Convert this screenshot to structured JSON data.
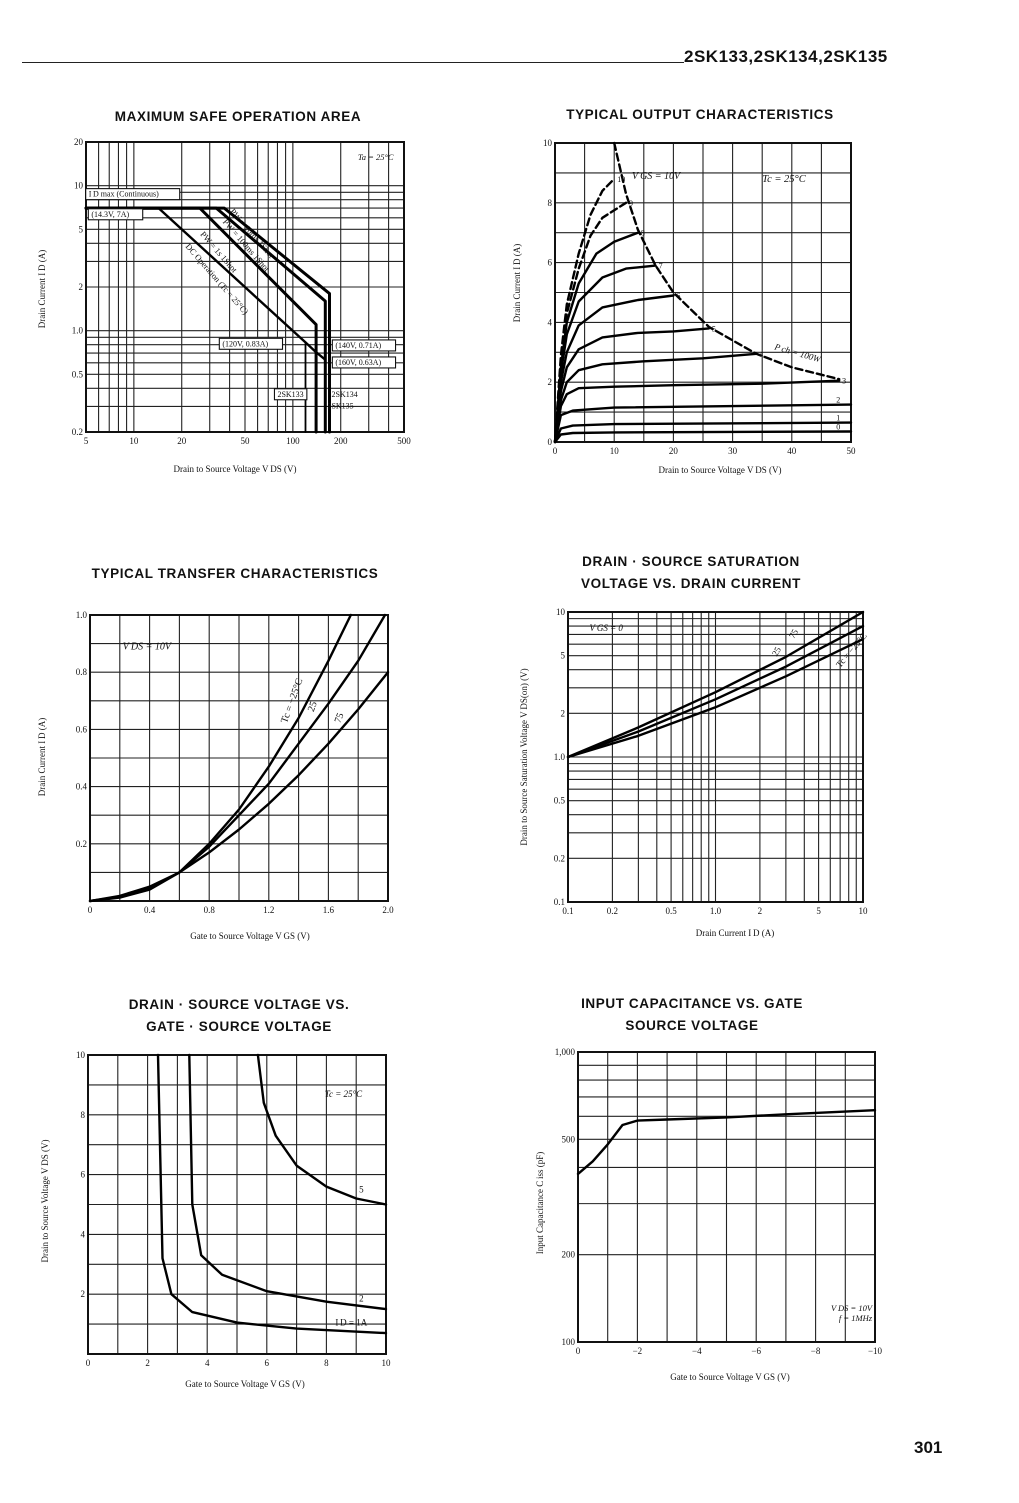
{
  "header": {
    "part_numbers": "2SK133,2SK134,2SK135"
  },
  "page_number": "301",
  "chart_data": [
    {
      "id": "soa",
      "type": "line",
      "title": "MAXIMUM SAFE OPERATION AREA",
      "xlabel": "Drain to Source Voltage  V DS  (V)",
      "ylabel": "Drain Current  I D  (A)",
      "xscale": "log",
      "yscale": "log",
      "xlim": [
        5,
        500
      ],
      "ylim": [
        0.2,
        20
      ],
      "xticks": [
        5,
        10,
        20,
        50,
        100,
        200,
        500
      ],
      "xtick_labels": [
        "5",
        "10",
        "20",
        "50",
        "100",
        "200",
        "500"
      ],
      "yticks": [
        0.2,
        0.5,
        1.0,
        2,
        5,
        10,
        20
      ],
      "ytick_labels": [
        "0.2",
        "0.5",
        "1.0",
        "2",
        "5",
        "10",
        "20"
      ],
      "condition": "Ta = 25°C",
      "series": [
        {
          "name": "PW = 10ms 1Shot",
          "x": [
            5,
            37,
            170,
            170
          ],
          "y": [
            7,
            7,
            1.8,
            0.2
          ]
        },
        {
          "name": "PW = 100ms 1Shot",
          "x": [
            5,
            33,
            160,
            160
          ],
          "y": [
            7,
            7,
            1.6,
            0.2
          ]
        },
        {
          "name": "PW = 1s 1Shot",
          "x": [
            5,
            26,
            140,
            140
          ],
          "y": [
            7,
            7,
            1.1,
            0.2
          ]
        },
        {
          "name": "DC Operation (Tc = 25°C)",
          "x": [
            5,
            14.3,
            120,
            140,
            160
          ],
          "y": [
            7,
            7,
            0.83,
            0.71,
            0.63
          ]
        },
        {
          "name": "2SK133",
          "x": [
            120,
            120
          ],
          "y": [
            0.83,
            0.2
          ]
        },
        {
          "name": "2SK134",
          "x": [
            140,
            140
          ],
          "y": [
            0.71,
            0.2
          ]
        },
        {
          "name": "2SK135",
          "x": [
            160,
            160
          ],
          "y": [
            0.63,
            0.2
          ]
        }
      ],
      "annotations": [
        "I D max (Continuous)",
        "(14.3V, 7A)",
        "(120V, 0.83A)",
        "(140V, 0.71A)",
        "(160V, 0.63A)",
        "2SK133",
        "2SK134",
        "2SK135",
        "PW = 10ms 1Shot",
        "PW = 100ms 1Shot",
        "PW = 1s 1Shot",
        "DC Operation (Tc = 25°C)"
      ]
    },
    {
      "id": "output",
      "type": "line",
      "title": "TYPICAL OUTPUT CHARACTERISTICS",
      "xlabel": "Drain to Source Voltage  V DS  (V)",
      "ylabel": "Drain Current  I D  (A)",
      "xlim": [
        0,
        50
      ],
      "ylim": [
        0,
        10
      ],
      "xticks": [
        0,
        10,
        20,
        30,
        40,
        50
      ],
      "yticks": [
        0,
        2,
        4,
        6,
        8,
        10
      ],
      "condition": "Tc = 25°C",
      "annotations": [
        "V GS = 10V",
        "P ch = 100W"
      ],
      "series": [
        {
          "name": "0",
          "x": [
            0,
            1,
            3,
            10,
            50
          ],
          "y": [
            0,
            0.25,
            0.3,
            0.32,
            0.35
          ]
        },
        {
          "name": "1",
          "x": [
            0,
            1,
            3,
            10,
            50
          ],
          "y": [
            0,
            0.45,
            0.55,
            0.6,
            0.65
          ]
        },
        {
          "name": "2",
          "x": [
            0,
            1,
            3,
            10,
            50
          ],
          "y": [
            0,
            0.9,
            1.05,
            1.15,
            1.25
          ]
        },
        {
          "name": "3",
          "x": [
            0,
            1,
            2,
            4,
            10,
            20,
            35,
            48
          ],
          "y": [
            0,
            1.2,
            1.6,
            1.8,
            1.85,
            1.9,
            1.95,
            2.05
          ]
        },
        {
          "name": "4",
          "x": [
            0,
            1,
            2,
            4,
            8,
            15,
            25,
            34
          ],
          "y": [
            0,
            1.4,
            2.0,
            2.4,
            2.6,
            2.7,
            2.8,
            2.95
          ]
        },
        {
          "name": "5",
          "x": [
            0,
            1,
            2,
            4,
            8,
            14,
            20,
            26
          ],
          "y": [
            0,
            1.7,
            2.5,
            3.1,
            3.5,
            3.65,
            3.7,
            3.8
          ]
        },
        {
          "name": "6",
          "x": [
            0,
            1,
            2,
            4,
            8,
            14,
            20
          ],
          "y": [
            0,
            2.0,
            3.0,
            3.9,
            4.5,
            4.75,
            4.9
          ]
        },
        {
          "name": "7",
          "x": [
            0,
            1,
            2,
            4,
            8,
            12,
            17
          ],
          "y": [
            0,
            2.3,
            3.6,
            4.7,
            5.5,
            5.8,
            5.9
          ]
        },
        {
          "name": "8",
          "x": [
            0,
            1,
            2,
            4,
            7,
            10,
            14
          ],
          "y": [
            0,
            2.5,
            4.0,
            5.3,
            6.3,
            6.7,
            7.0
          ]
        },
        {
          "name": "9",
          "x": [
            0,
            1,
            2,
            4,
            6,
            8,
            12
          ],
          "y": [
            0,
            2.7,
            4.3,
            5.8,
            6.9,
            7.5,
            8.0
          ],
          "dashed": true
        },
        {
          "name": "10",
          "x": [
            0,
            1,
            2,
            4,
            6,
            8,
            10
          ],
          "y": [
            0,
            2.9,
            4.6,
            6.3,
            7.6,
            8.4,
            8.8
          ],
          "dashed": true
        },
        {
          "name": "P ch = 100W",
          "x": [
            10,
            12,
            14,
            17,
            20,
            26,
            34,
            40,
            48
          ],
          "y": [
            10,
            8.3,
            7.1,
            5.9,
            5.0,
            3.85,
            2.95,
            2.5,
            2.1
          ],
          "dashed": true
        }
      ]
    },
    {
      "id": "transfer",
      "type": "line",
      "title": "TYPICAL TRANSFER CHARACTERISTICS",
      "xlabel": "Gate to Source Voltage  V GS  (V)",
      "ylabel": "Drain Current  I D  (A)",
      "xlim": [
        0,
        2.0
      ],
      "ylim": [
        0,
        1.0
      ],
      "xticks": [
        0,
        0.4,
        0.8,
        1.2,
        1.6,
        2.0
      ],
      "xtick_labels": [
        "0",
        "0.4",
        "0.8",
        "1.2",
        "1.6",
        "2.0"
      ],
      "yticks": [
        0,
        0.2,
        0.4,
        0.6,
        0.8,
        1.0
      ],
      "ytick_labels": [
        "",
        "0.2",
        "0.4",
        "0.6",
        "0.8",
        "1.0"
      ],
      "condition": "V DS = 10V",
      "series": [
        {
          "name": "Tc = −25°C",
          "x": [
            0,
            0.2,
            0.4,
            0.6,
            0.8,
            1.0,
            1.2,
            1.4,
            1.6,
            1.75
          ],
          "y": [
            0,
            0.012,
            0.04,
            0.1,
            0.2,
            0.32,
            0.47,
            0.64,
            0.84,
            1.0
          ]
        },
        {
          "name": "25",
          "x": [
            0,
            0.2,
            0.4,
            0.6,
            0.8,
            1.0,
            1.2,
            1.4,
            1.6,
            1.8,
            1.98
          ],
          "y": [
            0,
            0.015,
            0.045,
            0.1,
            0.19,
            0.3,
            0.41,
            0.55,
            0.69,
            0.84,
            1.0
          ]
        },
        {
          "name": "75",
          "x": [
            0,
            0.2,
            0.4,
            0.6,
            0.8,
            1.0,
            1.2,
            1.4,
            1.6,
            1.8,
            2.0
          ],
          "y": [
            0,
            0.018,
            0.05,
            0.1,
            0.17,
            0.25,
            0.34,
            0.44,
            0.55,
            0.67,
            0.8
          ]
        }
      ]
    },
    {
      "id": "saturation",
      "type": "line",
      "title": "DRAIN · SOURCE SATURATION\nVOLTAGE VS. DRAIN CURRENT",
      "xlabel": "Drain Current  I D  (A)",
      "ylabel": "Drain to Source Saturation Voltage  V DS(on)  (V)",
      "xscale": "log",
      "yscale": "log",
      "xlim": [
        0.1,
        10
      ],
      "ylim": [
        0.1,
        10
      ],
      "xticks": [
        0.1,
        0.2,
        0.5,
        1.0,
        2,
        5,
        10
      ],
      "xtick_labels": [
        "0.1",
        "0.2",
        "0.5",
        "1.0",
        "2",
        "5",
        "10"
      ],
      "yticks": [
        0.1,
        0.2,
        0.5,
        1.0,
        2,
        5,
        10
      ],
      "ytick_labels": [
        "0.1",
        "0.2",
        "0.5",
        "1.0",
        "2",
        "5",
        "10"
      ],
      "condition": "V GS = 0",
      "series": [
        {
          "name": "Tc = −25°C",
          "x": [
            0.1,
            0.3,
            1,
            3,
            10
          ],
          "y": [
            1.0,
            1.4,
            2.2,
            3.6,
            6.5
          ]
        },
        {
          "name": "25",
          "x": [
            0.1,
            0.3,
            1,
            3,
            10
          ],
          "y": [
            1.0,
            1.5,
            2.5,
            4.2,
            8.0
          ]
        },
        {
          "name": "75",
          "x": [
            0.1,
            0.3,
            1,
            3,
            10
          ],
          "y": [
            1.0,
            1.6,
            2.8,
            4.9,
            10
          ]
        }
      ]
    },
    {
      "id": "vds_vgs",
      "type": "line",
      "title": "DRAIN · SOURCE VOLTAGE VS.\nGATE · SOURCE VOLTAGE",
      "xlabel": "Gate to Source Voltage  V GS  (V)",
      "ylabel": "Drain to Source Voltage  V DS  (V)",
      "xlim": [
        0,
        10
      ],
      "ylim": [
        0,
        10
      ],
      "xticks": [
        0,
        2,
        4,
        6,
        8,
        10
      ],
      "yticks": [
        0,
        2,
        4,
        6,
        8,
        10
      ],
      "ytick_labels": [
        "",
        "2",
        "4",
        "6",
        "8",
        "10"
      ],
      "condition": "Tc = 25°C",
      "series": [
        {
          "name": "I D = 1A",
          "x": [
            2.35,
            2.5,
            2.8,
            3.5,
            5,
            7,
            10
          ],
          "y": [
            10,
            3.2,
            2.0,
            1.4,
            1.05,
            0.85,
            0.7
          ]
        },
        {
          "name": "2",
          "x": [
            3.4,
            3.5,
            3.8,
            4.5,
            6,
            8,
            10
          ],
          "y": [
            10,
            5.0,
            3.3,
            2.65,
            2.1,
            1.75,
            1.5
          ]
        },
        {
          "name": "5",
          "x": [
            5.7,
            5.9,
            6.3,
            7,
            8,
            9,
            10
          ],
          "y": [
            10,
            8.4,
            7.3,
            6.3,
            5.6,
            5.2,
            5.0
          ]
        }
      ]
    },
    {
      "id": "capacitance",
      "type": "line",
      "title": "INPUT CAPACITANCE VS. GATE\nSOURCE VOLTAGE",
      "xlabel": "Gate to Source Voltage  V GS  (V)",
      "ylabel": "Input Capacitance  C iss  (pF)",
      "yscale": "log",
      "xlim": [
        0,
        -10
      ],
      "ylim": [
        100,
        1000
      ],
      "xticks": [
        0,
        -2,
        -4,
        -6,
        -8,
        -10
      ],
      "xtick_labels": [
        "0",
        "−2",
        "−4",
        "−6",
        "−8",
        "−10"
      ],
      "yticks": [
        100,
        200,
        500,
        1000
      ],
      "ytick_labels": [
        "100",
        "200",
        "500",
        "1,000"
      ],
      "condition_lines": [
        "V DS = 10V",
        "f = 1MHz"
      ],
      "series": [
        {
          "name": "C iss",
          "x": [
            0,
            -0.5,
            -1.0,
            -1.5,
            -2.0,
            -3,
            -5,
            -7,
            -10
          ],
          "y": [
            380,
            420,
            480,
            560,
            580,
            585,
            595,
            610,
            630
          ]
        }
      ]
    }
  ]
}
